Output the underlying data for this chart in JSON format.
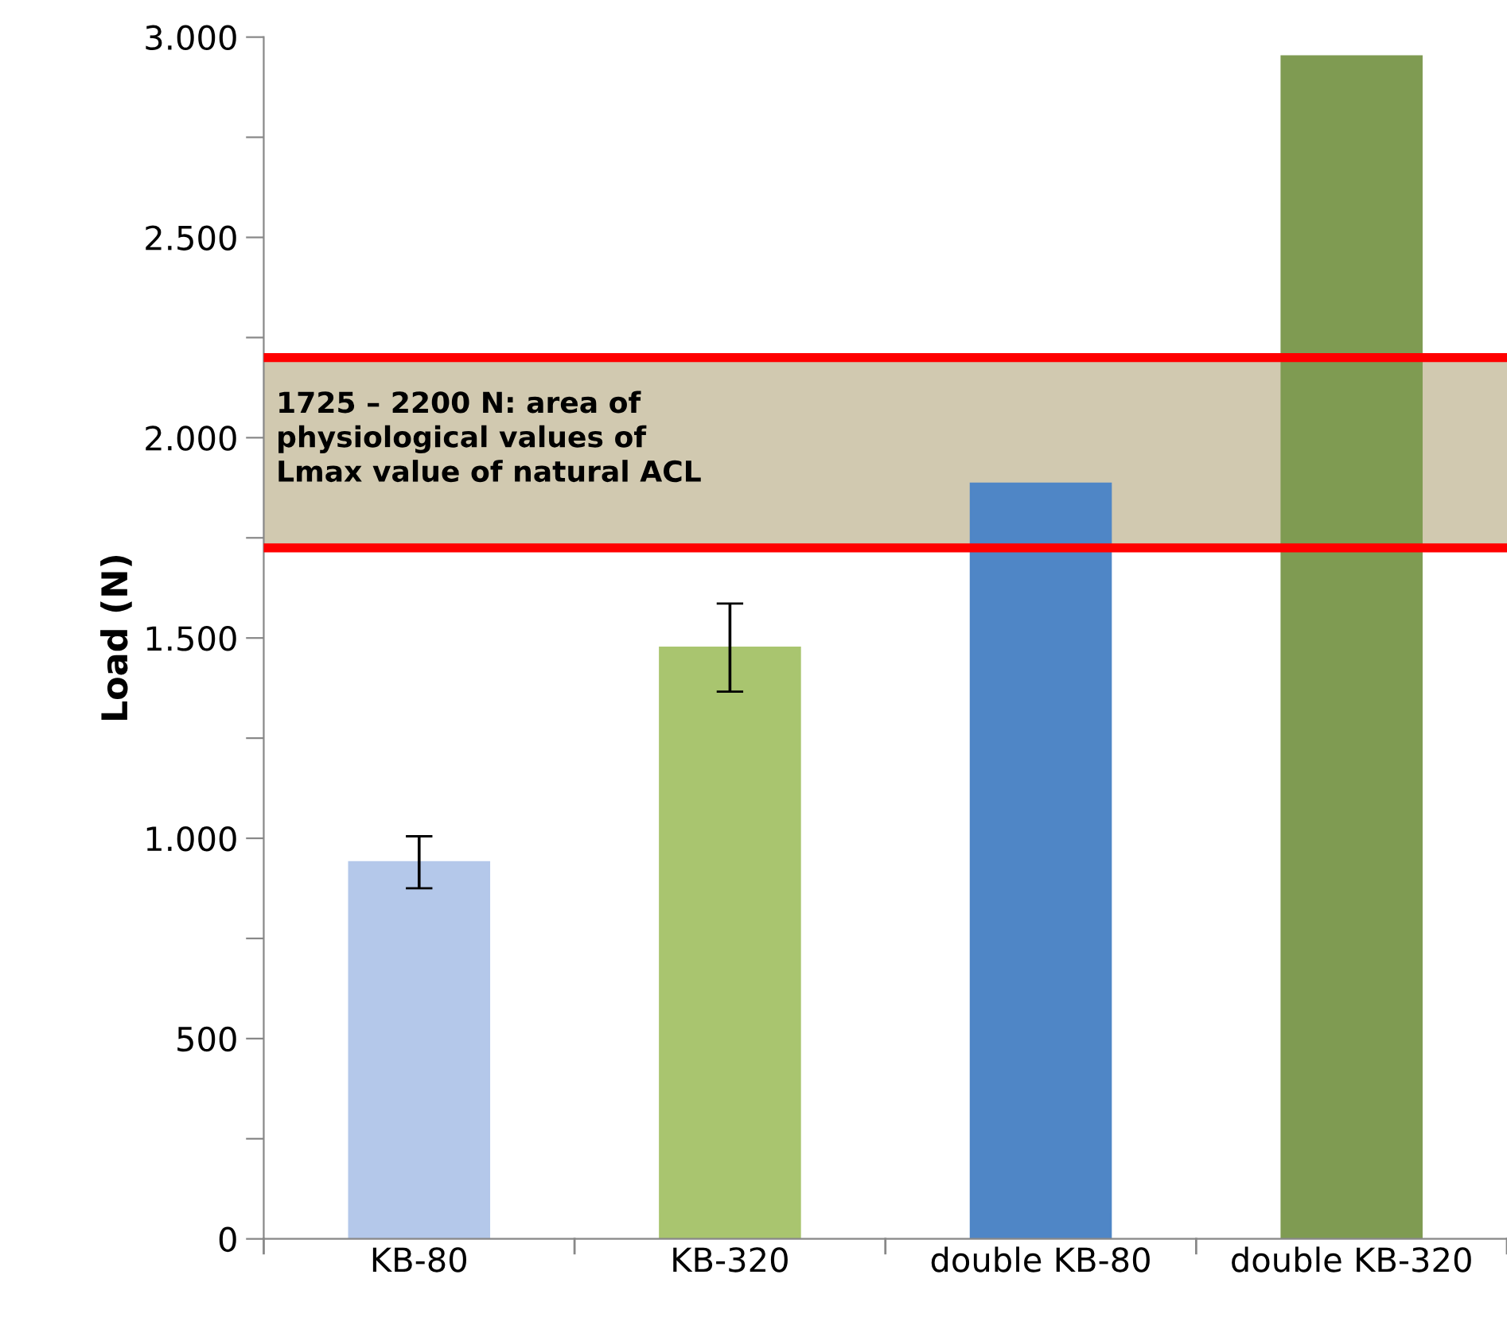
{
  "chart_data": {
    "type": "bar",
    "ylabel": "Load (N)",
    "categories": [
      "KB-80",
      "KB-320",
      "double KB-80",
      "double KB-320"
    ],
    "values": [
      940,
      1476,
      1885,
      2952
    ],
    "errors": [
      65,
      110,
      null,
      null
    ],
    "colors": [
      "#b4c8ea",
      "#a9c56f",
      "#4f86c6",
      "#7f9b52"
    ],
    "ylim": [
      0,
      3000
    ],
    "yticks": [
      {
        "value": 0,
        "label": "0"
      },
      {
        "value": 250,
        "label": null
      },
      {
        "value": 500,
        "label": "500"
      },
      {
        "value": 750,
        "label": null
      },
      {
        "value": 1000,
        "label": "1.000"
      },
      {
        "value": 1250,
        "label": null
      },
      {
        "value": 1500,
        "label": "1.500"
      },
      {
        "value": 1750,
        "label": null
      },
      {
        "value": 2000,
        "label": "2.000"
      },
      {
        "value": 2250,
        "label": null
      },
      {
        "value": 2500,
        "label": "2.500"
      },
      {
        "value": 2750,
        "label": null
      },
      {
        "value": 3000,
        "label": "3.000"
      }
    ],
    "bands": [
      {
        "axis": "y",
        "from": 1725,
        "to": 2200,
        "label": "1725 – 2200 N: area of\nphysiological values of\nLmax value of natural ACL",
        "color": "#c9c0a2"
      }
    ],
    "ref_lines": [
      {
        "axis": "y",
        "value": 1725,
        "color": "#ff0000"
      },
      {
        "axis": "y",
        "value": 2200,
        "color": "#ff0000"
      }
    ],
    "grid": false,
    "legend": false
  }
}
